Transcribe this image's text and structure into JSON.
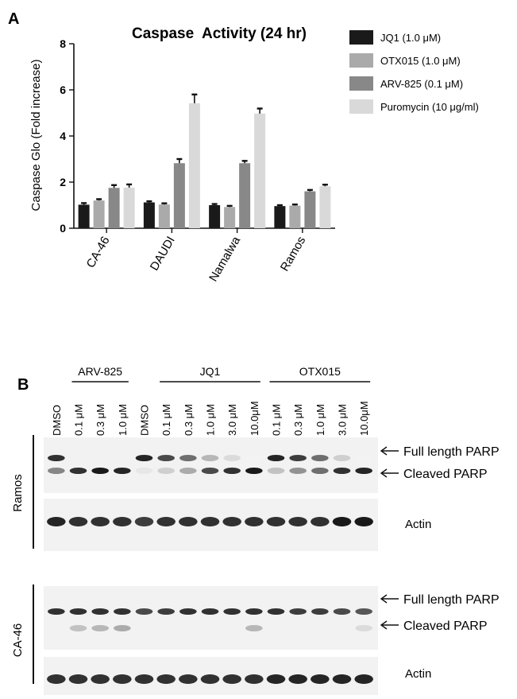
{
  "panel_a": {
    "label": "A",
    "chart_data": {
      "type": "bar",
      "title": "Caspase  Activity (24 hr)",
      "ylabel": "Caspase Glo (Fold increase)",
      "xlabel": "",
      "ylim": [
        0,
        8
      ],
      "yticks": [
        "0",
        "2",
        "4",
        "6",
        "8"
      ],
      "categories": [
        "CA-46",
        "DAUDI",
        "Namalwa",
        "Ramos"
      ],
      "series": [
        {
          "name": "JQ1 (1.0 μM)",
          "color": "#1a1a1a",
          "values": [
            1.02,
            1.12,
            1.0,
            0.96
          ],
          "errors": [
            0.07,
            0.05,
            0.05,
            0.04
          ]
        },
        {
          "name": "OTX015 (1.0 μM)",
          "color": "#aaaaaa",
          "values": [
            1.2,
            1.03,
            0.92,
            0.98
          ],
          "errors": [
            0.06,
            0.05,
            0.05,
            0.05
          ]
        },
        {
          "name": "ARV-825 (0.1 μM)",
          "color": "#888888",
          "values": [
            1.75,
            2.82,
            2.82,
            1.6
          ],
          "errors": [
            0.12,
            0.18,
            0.1,
            0.06
          ]
        },
        {
          "name": "Puromycin (10 μg/ml)",
          "color": "#d9d9d9",
          "values": [
            1.76,
            5.42,
            4.97,
            1.82
          ],
          "errors": [
            0.14,
            0.38,
            0.22,
            0.07
          ]
        }
      ],
      "grid": false,
      "legend": "right"
    }
  },
  "panel_b": {
    "label": "B",
    "groups": [
      "ARV-825",
      "JQ1",
      "OTX015"
    ],
    "lanes": [
      "DMSO",
      "0.1 μM",
      "0.3 μM",
      "1.0 μM",
      "DMSO",
      "0.1 μM",
      "0.3 μM",
      "1.0 μM",
      "3.0 μM",
      "10.0μM",
      "0.1 μM",
      "0.3 μM",
      "1.0 μM",
      "3.0 μM",
      "10.0μM"
    ],
    "blots": [
      {
        "cell_line": "Ramos",
        "labels": [
          "Full length PARP",
          "Cleaved PARP",
          "Actin"
        ],
        "full_length": [
          0.85,
          0,
          0,
          0,
          0.9,
          0.75,
          0.6,
          0.3,
          0.15,
          0.05,
          0.9,
          0.8,
          0.6,
          0.2,
          0.05
        ],
        "cleaved": [
          0.5,
          0.85,
          0.95,
          0.9,
          0.1,
          0.2,
          0.35,
          0.75,
          0.85,
          0.95,
          0.25,
          0.45,
          0.6,
          0.85,
          0.9
        ],
        "actin": [
          0.9,
          0.85,
          0.85,
          0.85,
          0.8,
          0.85,
          0.85,
          0.85,
          0.85,
          0.85,
          0.85,
          0.85,
          0.85,
          0.95,
          0.95
        ]
      },
      {
        "cell_line": "CA-46",
        "labels": [
          "Full length PARP",
          "Cleaved PARP",
          "Actin"
        ],
        "full_length": [
          0.85,
          0.85,
          0.85,
          0.85,
          0.75,
          0.8,
          0.85,
          0.85,
          0.85,
          0.85,
          0.85,
          0.8,
          0.8,
          0.75,
          0.7
        ],
        "cleaved": [
          0,
          0.25,
          0.3,
          0.35,
          0,
          0,
          0,
          0,
          0,
          0.3,
          0,
          0,
          0,
          0,
          0.15
        ],
        "actin": [
          0.85,
          0.85,
          0.85,
          0.85,
          0.85,
          0.85,
          0.85,
          0.85,
          0.85,
          0.85,
          0.9,
          0.9,
          0.9,
          0.9,
          0.9
        ]
      }
    ]
  }
}
